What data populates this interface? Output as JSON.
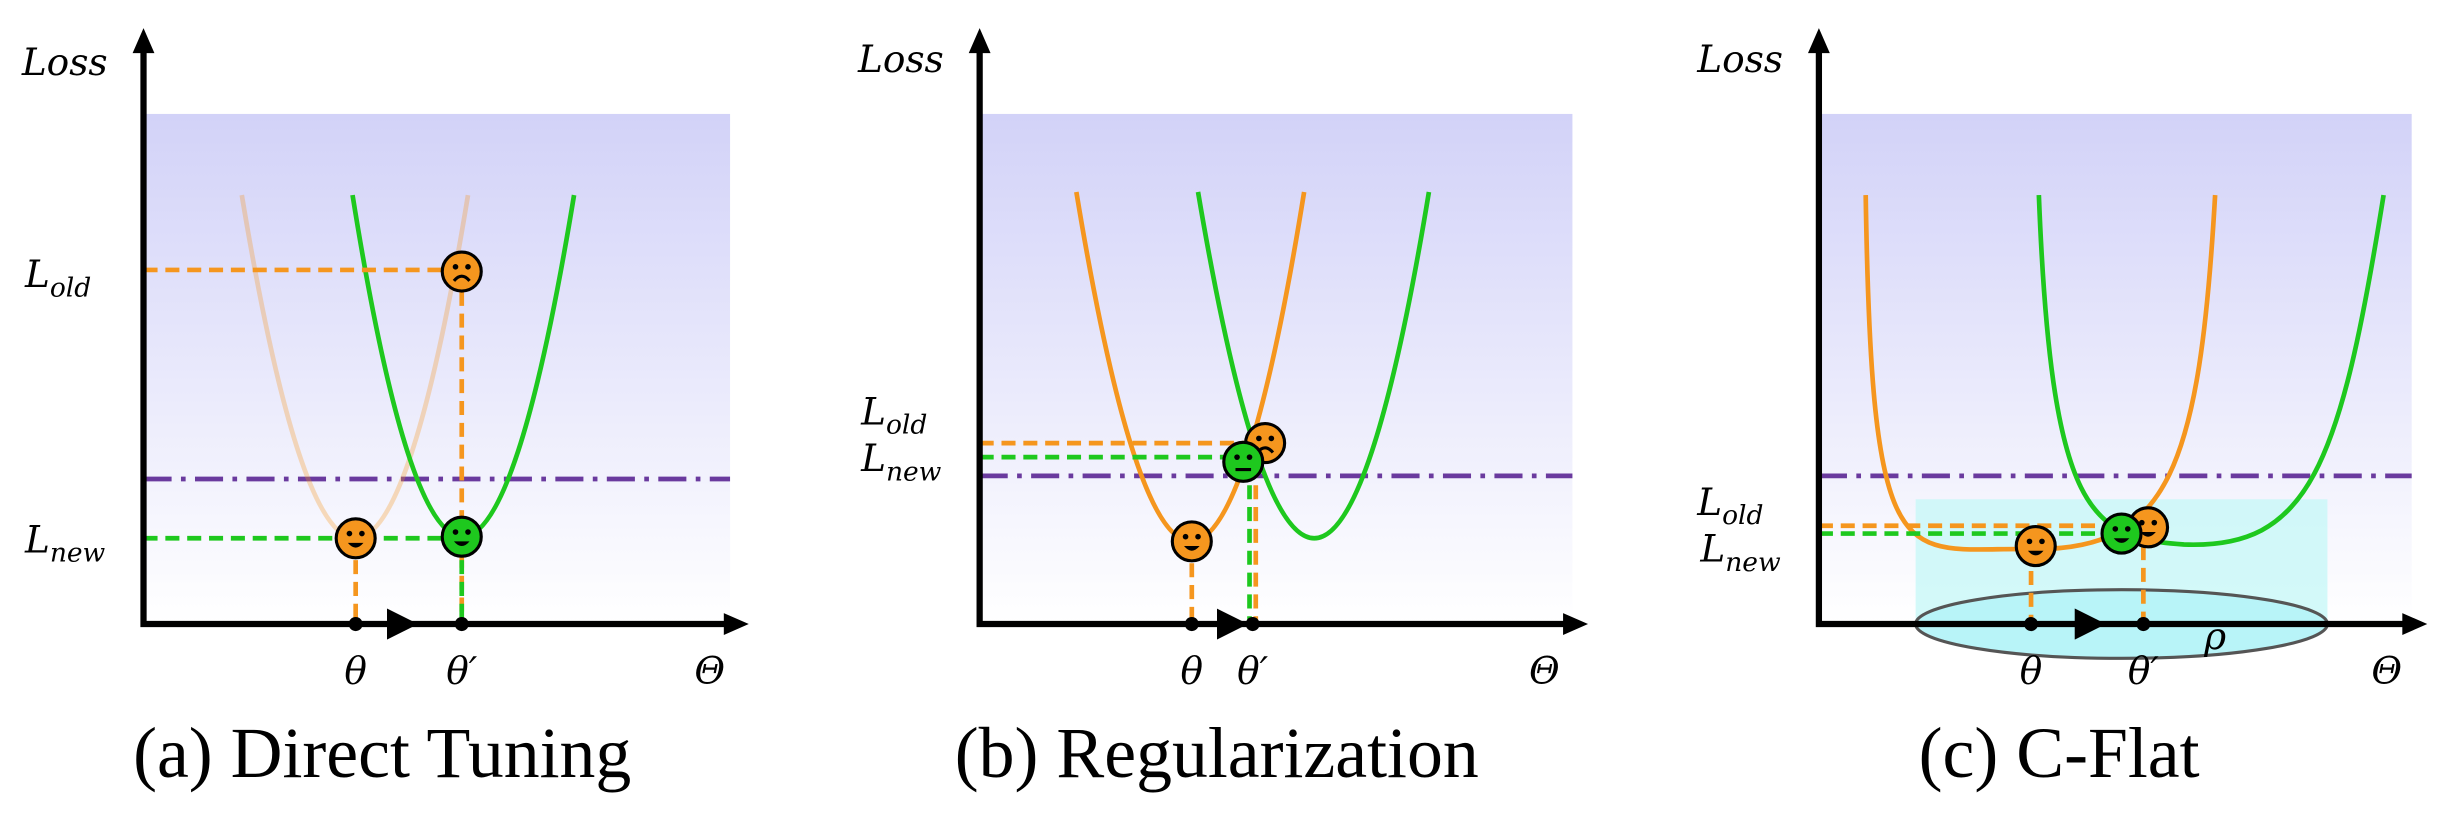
{
  "panels": [
    {
      "y_axis_label": "Loss",
      "loss_labels": [
        {
          "base": "L",
          "sub": "old"
        },
        {
          "base": "L",
          "sub": "new"
        }
      ],
      "x_labels": [
        "θ",
        "θ′",
        "Θ"
      ],
      "caption": "(a) Direct Tuning"
    },
    {
      "y_axis_label": "Loss",
      "loss_labels": [
        {
          "base": "L",
          "sub": "old"
        },
        {
          "base": "L",
          "sub": "new"
        }
      ],
      "x_labels": [
        "θ",
        "θ′",
        "Θ"
      ],
      "caption": "(b) Regularization"
    },
    {
      "y_axis_label": "Loss",
      "loss_labels": [
        {
          "base": "L",
          "sub": "old"
        },
        {
          "base": "L",
          "sub": "new"
        }
      ],
      "x_labels": [
        "θ",
        "θ′",
        "Θ"
      ],
      "radius_label": "ρ",
      "caption": "(c) C-Flat"
    }
  ]
}
